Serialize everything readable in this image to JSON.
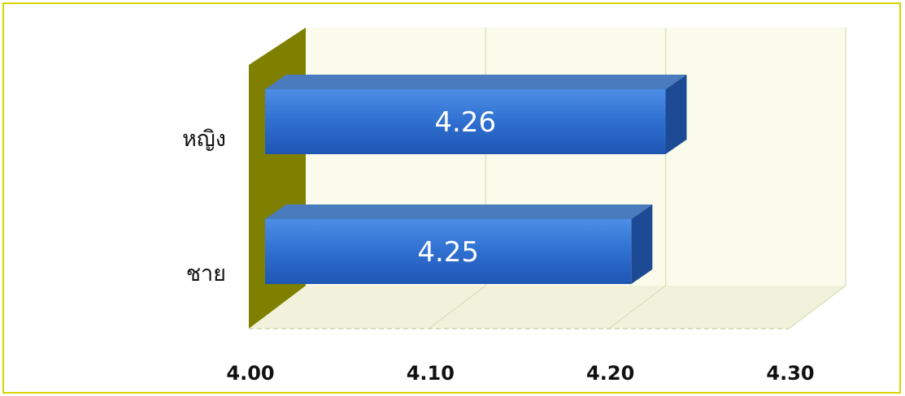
{
  "chart_data": {
    "type": "bar",
    "orientation": "horizontal",
    "style": "3d",
    "categories": [
      "หญิง",
      "ชาย"
    ],
    "values": [
      4.26,
      4.25
    ],
    "data_labels": [
      "4.26",
      "4.25"
    ],
    "x_ticks": [
      "4.00",
      "4.10",
      "4.20",
      "4.30"
    ],
    "xlim": [
      4.0,
      4.3
    ],
    "grid": true,
    "title": "",
    "xlabel": "",
    "ylabel": "",
    "colors": {
      "bar": "#2f6fd0",
      "bar_top": "#4a7bbf",
      "bar_side": "#1d4a94",
      "back_wall": "#fafbea",
      "floor": "#f2f2dc",
      "left_wall": "#808000",
      "gridline": "#d9e4c0",
      "border": "#d8d300"
    }
  }
}
